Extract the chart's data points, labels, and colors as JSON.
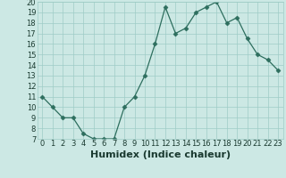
{
  "x": [
    0,
    1,
    2,
    3,
    4,
    5,
    6,
    7,
    8,
    9,
    10,
    11,
    12,
    13,
    14,
    15,
    16,
    17,
    18,
    19,
    20,
    21,
    22,
    23
  ],
  "y": [
    11,
    10,
    9,
    9,
    7.5,
    7,
    7,
    7,
    10,
    11,
    13,
    16,
    19.5,
    17,
    17.5,
    19,
    19.5,
    20,
    18,
    18.5,
    16.5,
    15,
    14.5,
    13.5
  ],
  "line_color": "#2d6e5e",
  "marker": "D",
  "marker_size": 2.5,
  "bg_color": "#cce8e4",
  "grid_color": "#9fccc6",
  "xlabel": "Humidex (Indice chaleur)",
  "xlim": [
    -0.5,
    23.5
  ],
  "ylim": [
    7,
    20
  ],
  "yticks": [
    7,
    8,
    9,
    10,
    11,
    12,
    13,
    14,
    15,
    16,
    17,
    18,
    19,
    20
  ],
  "xticks": [
    0,
    1,
    2,
    3,
    4,
    5,
    6,
    7,
    8,
    9,
    10,
    11,
    12,
    13,
    14,
    15,
    16,
    17,
    18,
    19,
    20,
    21,
    22,
    23
  ],
  "tick_label_fontsize": 6,
  "xlabel_fontsize": 8,
  "label_color": "#1a3a30"
}
